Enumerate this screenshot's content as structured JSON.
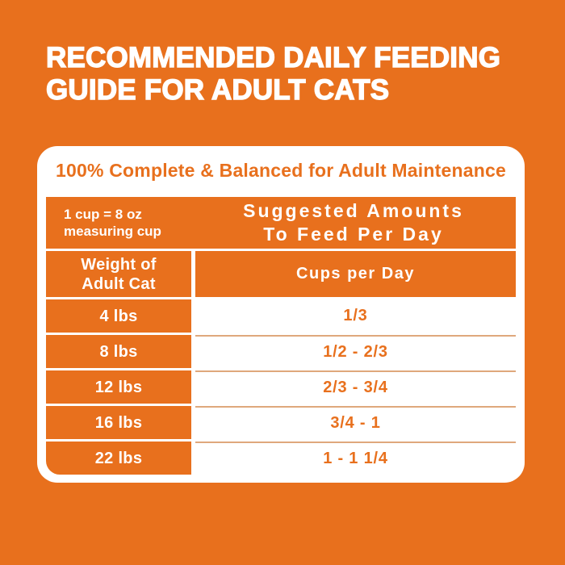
{
  "page": {
    "heading_line1": "RECOMMENDED DAILY FEEDING",
    "heading_line2": "GUIDE FOR ADULT CATS"
  },
  "card": {
    "title": "100% Complete & Balanced for Adult Maintenance",
    "table": {
      "cup_note_line1": "1 cup = 8 oz",
      "cup_note_line2": "measuring cup",
      "suggested_line1": "Suggested Amounts",
      "suggested_line2": "To Feed Per Day",
      "col_headers": {
        "weight_line1": "Weight of",
        "weight_line2": "Adult Cat",
        "cups": "Cups per Day"
      },
      "rows": [
        {
          "weight": "4 lbs",
          "cups": "1/3"
        },
        {
          "weight": "8 lbs",
          "cups": "1/2 - 2/3"
        },
        {
          "weight": "12 lbs",
          "cups": "2/3 - 3/4"
        },
        {
          "weight": "16 lbs",
          "cups": "3/4 - 1"
        },
        {
          "weight": "22 lbs",
          "cups": "1 - 1 1/4"
        }
      ]
    }
  },
  "colors": {
    "background_orange": "#E8701D",
    "card_white": "#FFFFFF",
    "divider_tan": "#DFA87C"
  }
}
